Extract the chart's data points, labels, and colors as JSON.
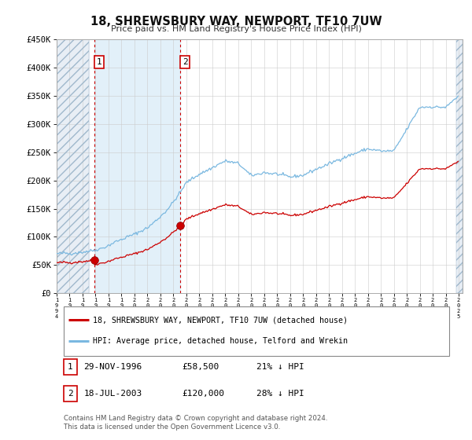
{
  "title": "18, SHREWSBURY WAY, NEWPORT, TF10 7UW",
  "subtitle": "Price paid vs. HM Land Registry's House Price Index (HPI)",
  "ylim": [
    0,
    450000
  ],
  "yticks": [
    0,
    50000,
    100000,
    150000,
    200000,
    250000,
    300000,
    350000,
    400000,
    450000
  ],
  "ytick_labels": [
    "£0",
    "£50K",
    "£100K",
    "£150K",
    "£200K",
    "£250K",
    "£300K",
    "£350K",
    "£400K",
    "£450K"
  ],
  "hpi_color": "#7ab8e0",
  "price_color": "#cc0000",
  "p1_x": 1996.92,
  "p1_y": 58500,
  "p2_x": 2003.54,
  "p2_y": 120000,
  "xlim_left": 1994.0,
  "xlim_right": 2025.3,
  "hatch_left_end": 1996.5,
  "hatch_right_start": 2024.8,
  "fill_between_start": 1996.92,
  "fill_between_end": 2003.54,
  "legend_label_red": "18, SHREWSBURY WAY, NEWPORT, TF10 7UW (detached house)",
  "legend_label_blue": "HPI: Average price, detached house, Telford and Wrekin",
  "table_row1": [
    "1",
    "29-NOV-1996",
    "£58,500",
    "21% ↓ HPI"
  ],
  "table_row2": [
    "2",
    "18-JUL-2003",
    "£120,000",
    "28% ↓ HPI"
  ],
  "footnote": "Contains HM Land Registry data © Crown copyright and database right 2024.\nThis data is licensed under the Open Government Licence v3.0.",
  "bg_color": "#ffffff",
  "grid_color": "#cccccc"
}
